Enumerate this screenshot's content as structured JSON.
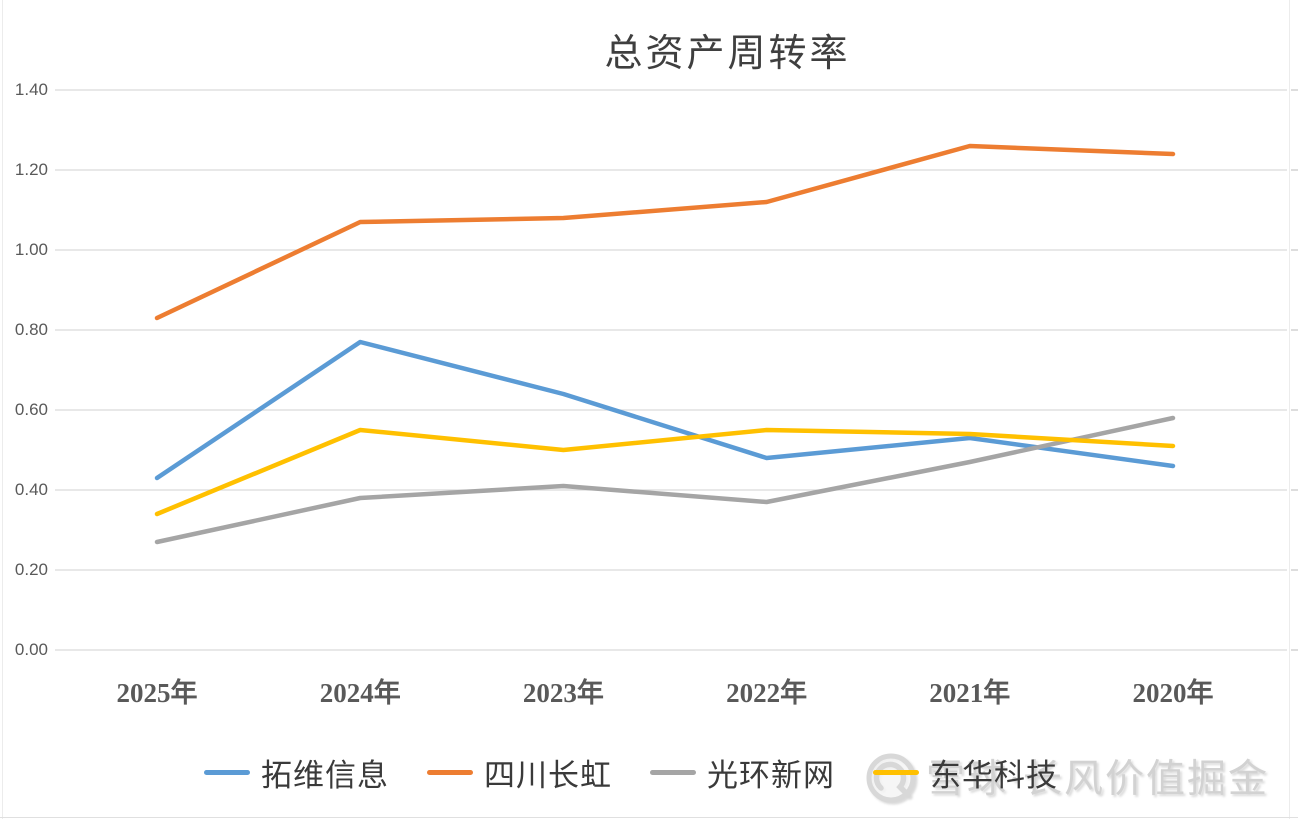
{
  "title": "总资产周转率",
  "watermark": {
    "logo_icon": "xueqiu-snowball-logo-icon",
    "brand_text": "雪球·长风价值掘金"
  },
  "colors": {
    "series_blue": "#5B9BD5",
    "series_orange": "#ED7D31",
    "series_gray": "#A5A5A5",
    "series_yellow": "#FFC000",
    "gridline": "#D9D9D9",
    "axis_text": "#595959",
    "title_text": "#3F3F3F",
    "watermark_text": "#D2D2D2"
  },
  "chart_data": {
    "type": "line",
    "title": "总资产周转率",
    "categories": [
      "2025年",
      "2024年",
      "2023年",
      "2022年",
      "2021年",
      "2020年"
    ],
    "series": [
      {
        "name": "拓维信息",
        "color": "#5B9BD5",
        "values": [
          0.43,
          0.77,
          0.64,
          0.48,
          0.53,
          0.46
        ]
      },
      {
        "name": "四川长虹",
        "color": "#ED7D31",
        "values": [
          0.83,
          1.07,
          1.08,
          1.12,
          1.26,
          1.24
        ]
      },
      {
        "name": "光环新网",
        "color": "#A5A5A5",
        "values": [
          0.27,
          0.38,
          0.41,
          0.37,
          0.47,
          0.58
        ]
      },
      {
        "name": "东华科技",
        "color": "#FFC000",
        "values": [
          0.34,
          0.55,
          0.5,
          0.55,
          0.54,
          0.51
        ]
      }
    ],
    "xlabel": "",
    "ylabel": "",
    "ylim": [
      0.0,
      1.4
    ],
    "yticks": [
      "0.00",
      "0.20",
      "0.40",
      "0.60",
      "0.80",
      "1.00",
      "1.20",
      "1.40"
    ],
    "grid": true,
    "legend_position": "bottom"
  }
}
